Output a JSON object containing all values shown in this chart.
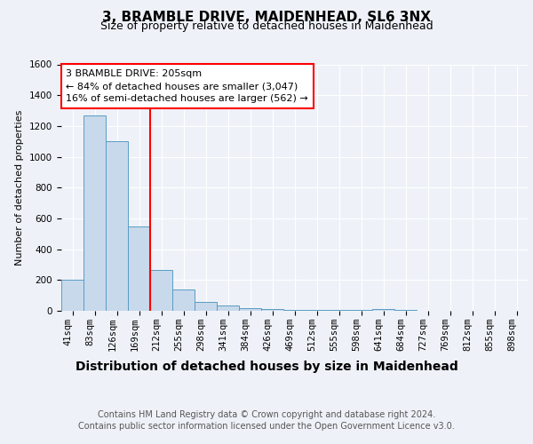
{
  "title": "3, BRAMBLE DRIVE, MAIDENHEAD, SL6 3NX",
  "subtitle": "Size of property relative to detached houses in Maidenhead",
  "xlabel": "Distribution of detached houses by size in Maidenhead",
  "ylabel": "Number of detached properties",
  "categories": [
    "41sqm",
    "83sqm",
    "126sqm",
    "169sqm",
    "212sqm",
    "255sqm",
    "298sqm",
    "341sqm",
    "384sqm",
    "426sqm",
    "469sqm",
    "512sqm",
    "555sqm",
    "598sqm",
    "641sqm",
    "684sqm",
    "727sqm",
    "769sqm",
    "812sqm",
    "855sqm",
    "898sqm"
  ],
  "values": [
    200,
    1270,
    1100,
    550,
    265,
    140,
    60,
    35,
    20,
    10,
    5,
    5,
    5,
    5,
    10,
    5,
    2,
    2,
    2,
    2,
    2
  ],
  "bar_color": "#c8d9eb",
  "bar_edge_color": "#5a9cc5",
  "red_line_index": 4,
  "annotation_text": "3 BRAMBLE DRIVE: 205sqm\n← 84% of detached houses are smaller (3,047)\n16% of semi-detached houses are larger (562) →",
  "ylim": [
    0,
    1600
  ],
  "yticks": [
    0,
    200,
    400,
    600,
    800,
    1000,
    1200,
    1400,
    1600
  ],
  "footer_line1": "Contains HM Land Registry data © Crown copyright and database right 2024.",
  "footer_line2": "Contains public sector information licensed under the Open Government Licence v3.0.",
  "background_color": "#eef2f8",
  "plot_bg_color": "#eef2f8",
  "grid_color": "#ffffff",
  "title_fontsize": 11,
  "subtitle_fontsize": 9,
  "xlabel_fontsize": 10,
  "ylabel_fontsize": 8,
  "tick_fontsize": 7.5,
  "annotation_fontsize": 8,
  "footer_fontsize": 7
}
